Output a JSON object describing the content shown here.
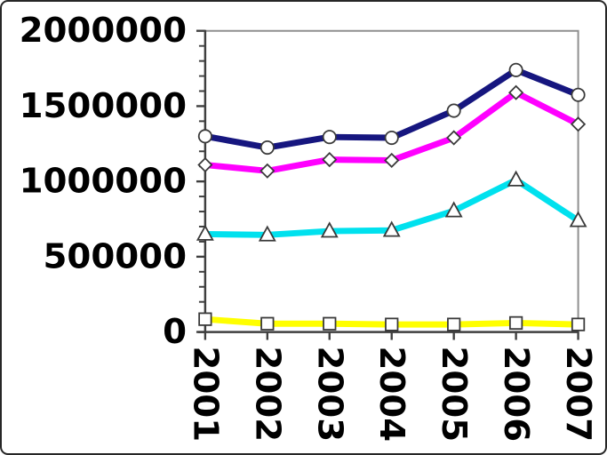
{
  "chart_data": {
    "type": "line",
    "title": "",
    "xlabel": "",
    "ylabel": "",
    "legend": false,
    "grid": false,
    "x_categories": [
      "2001",
      "2002",
      "2003",
      "2004",
      "2005",
      "2006",
      "2007"
    ],
    "ylim": [
      0,
      2000000
    ],
    "y_major_tick_step": 500000,
    "y_minor_tick_step": 100000,
    "y_tick_labels": [
      "0",
      "500000",
      "1000000",
      "1500000",
      "2000000"
    ],
    "x_tick_label_rotation_deg": 90,
    "series": [
      {
        "name": "dark-blue-circle-series",
        "color": "#16167f",
        "marker": "circle",
        "values": [
          1300000,
          1225000,
          1295000,
          1290000,
          1470000,
          1740000,
          1575000
        ]
      },
      {
        "name": "magenta-diamond-series",
        "color": "#ff00ff",
        "marker": "diamond",
        "values": [
          1110000,
          1070000,
          1145000,
          1140000,
          1290000,
          1590000,
          1380000
        ]
      },
      {
        "name": "cyan-triangle-series",
        "color": "#00e1ee",
        "marker": "triangle",
        "values": [
          650000,
          645000,
          670000,
          675000,
          805000,
          1010000,
          740000
        ]
      },
      {
        "name": "yellow-square-series",
        "color": "#ffff00",
        "marker": "square",
        "values": [
          85000,
          55000,
          55000,
          50000,
          50000,
          60000,
          50000
        ]
      }
    ],
    "marker_fill": "#ffffff",
    "marker_stroke": "#3a3a3a",
    "axis_color": "#3f3f3f",
    "frame_color": "#8f8f8f"
  }
}
